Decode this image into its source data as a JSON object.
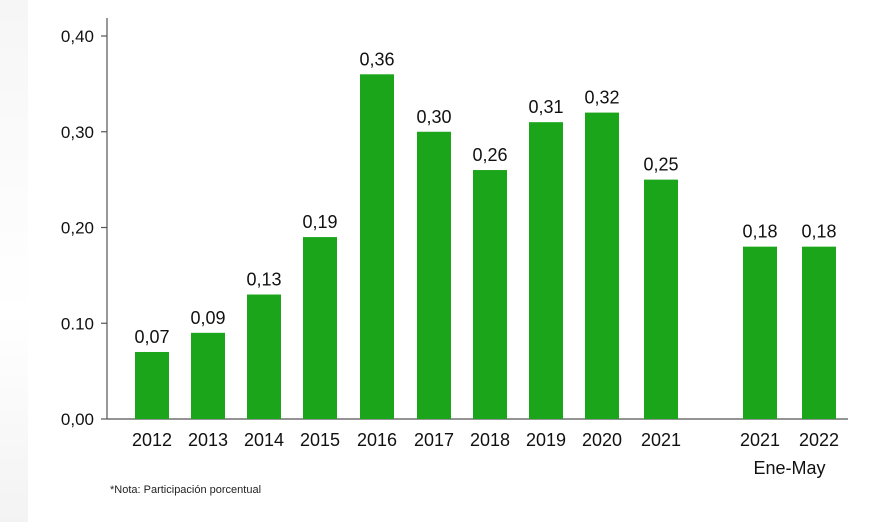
{
  "chart_data": {
    "type": "bar",
    "title": "",
    "xlabel": "",
    "ylabel": "",
    "ylim": [
      0,
      0.4
    ],
    "yticks": [
      "0,00",
      "0.10",
      "0,20",
      "0,30",
      "0,40"
    ],
    "ytick_values": [
      0,
      0.1,
      0.2,
      0.3,
      0.4
    ],
    "bar_color": "#1aa51a",
    "categories": [
      "2012",
      "2013",
      "2014",
      "2015",
      "2016",
      "2017",
      "2018",
      "2019",
      "2020",
      "2021",
      "2021",
      "2022"
    ],
    "values": [
      0.07,
      0.09,
      0.13,
      0.19,
      0.36,
      0.3,
      0.26,
      0.31,
      0.32,
      0.25,
      0.18,
      0.18
    ],
    "value_labels": [
      "0,07",
      "0,09",
      "0,13",
      "0,19",
      "0,36",
      "0,30",
      "0,26",
      "0,31",
      "0,32",
      "0,25",
      "0,18",
      "0,18"
    ],
    "group_label": "Ene-May",
    "grid": false,
    "legend": "none"
  },
  "note": "*Nota: Participación porcentual"
}
